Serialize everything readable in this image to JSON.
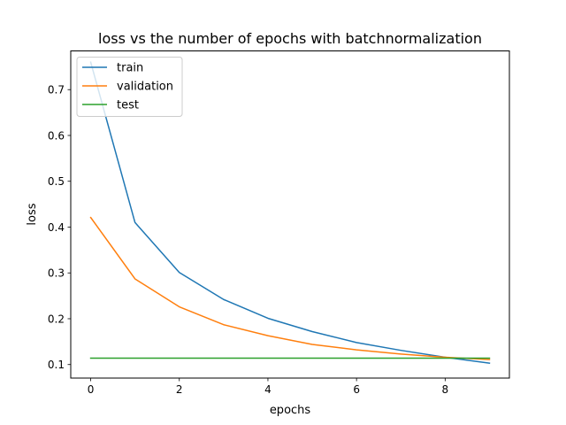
{
  "chart_data": {
    "type": "line",
    "title": "loss vs the number of epochs with batchnormalization",
    "xlabel": "epochs",
    "ylabel": "loss",
    "xlim": [
      -0.45,
      9.45
    ],
    "ylim": [
      0.0705,
      0.7845
    ],
    "xticks": [
      0,
      2,
      4,
      6,
      8
    ],
    "yticks": [
      0.1,
      0.2,
      0.3,
      0.4,
      0.5,
      0.6,
      0.7
    ],
    "grid": false,
    "legend_position": "upper-left",
    "x": [
      0,
      1,
      2,
      3,
      4,
      5,
      6,
      7,
      8,
      9
    ],
    "series": [
      {
        "name": "train",
        "color": "#1f77b4",
        "values": [
          0.76,
          0.41,
          0.301,
          0.242,
          0.201,
          0.172,
          0.148,
          0.131,
          0.116,
          0.103
        ]
      },
      {
        "name": "validation",
        "color": "#ff7f0e",
        "values": [
          0.421,
          0.287,
          0.226,
          0.187,
          0.163,
          0.144,
          0.132,
          0.123,
          0.116,
          0.111
        ]
      },
      {
        "name": "test",
        "color": "#2ca02c",
        "values": [
          0.114,
          0.114,
          0.114,
          0.114,
          0.114,
          0.114,
          0.114,
          0.114,
          0.114,
          0.114
        ]
      }
    ]
  }
}
